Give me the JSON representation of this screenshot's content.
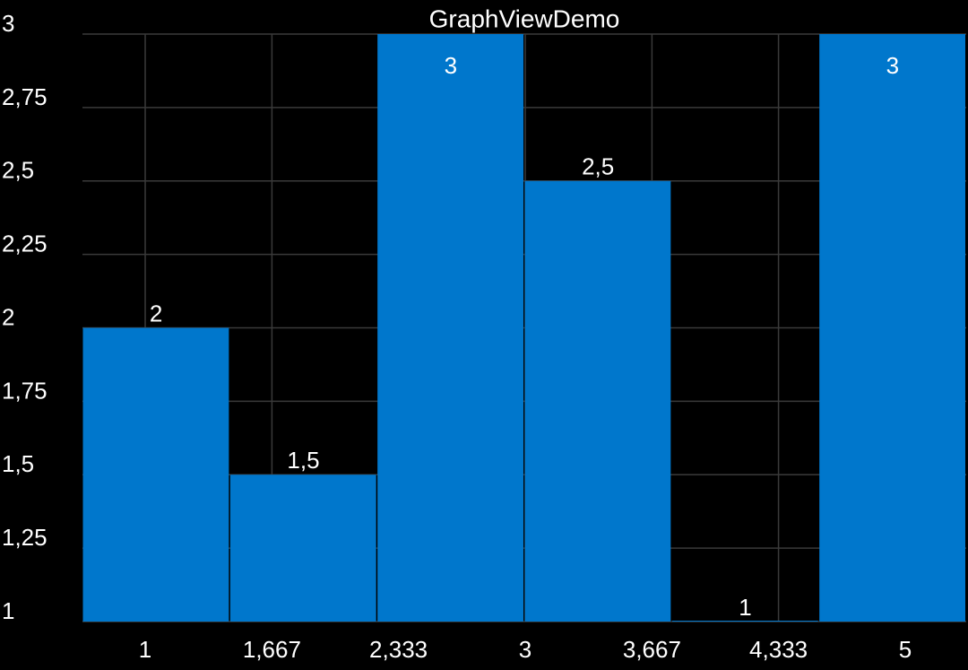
{
  "chart_data": {
    "type": "bar",
    "title": "GraphViewDemo",
    "categories": [
      null,
      null,
      null,
      null,
      null,
      null
    ],
    "values": [
      2,
      1.5,
      3,
      2.5,
      1,
      3
    ],
    "value_labels": [
      "2",
      "1,5",
      "3",
      "2,5",
      "1",
      "3"
    ],
    "color": "#0077cc",
    "ylim": [
      1,
      3
    ],
    "yticks": [
      1,
      {
        "value": 1.25,
        "label": "1,25"
      },
      {
        "value": 1.5,
        "label": "1,5"
      },
      {
        "value": 1.75,
        "label": "1,75"
      },
      2,
      {
        "value": 2.25,
        "label": "2,25"
      },
      {
        "value": 2.5,
        "label": "2,5"
      },
      {
        "value": 2.75,
        "label": "2,75"
      },
      3
    ],
    "xlim": [
      1,
      5
    ],
    "xticks": [
      1,
      {
        "value": 1.667,
        "label": "1,667"
      },
      {
        "value": 2.333,
        "label": "2,333"
      },
      3,
      {
        "value": 3.667,
        "label": "3,667"
      },
      {
        "value": 4.333,
        "label": "4,333"
      },
      5
    ],
    "grid": true
  }
}
